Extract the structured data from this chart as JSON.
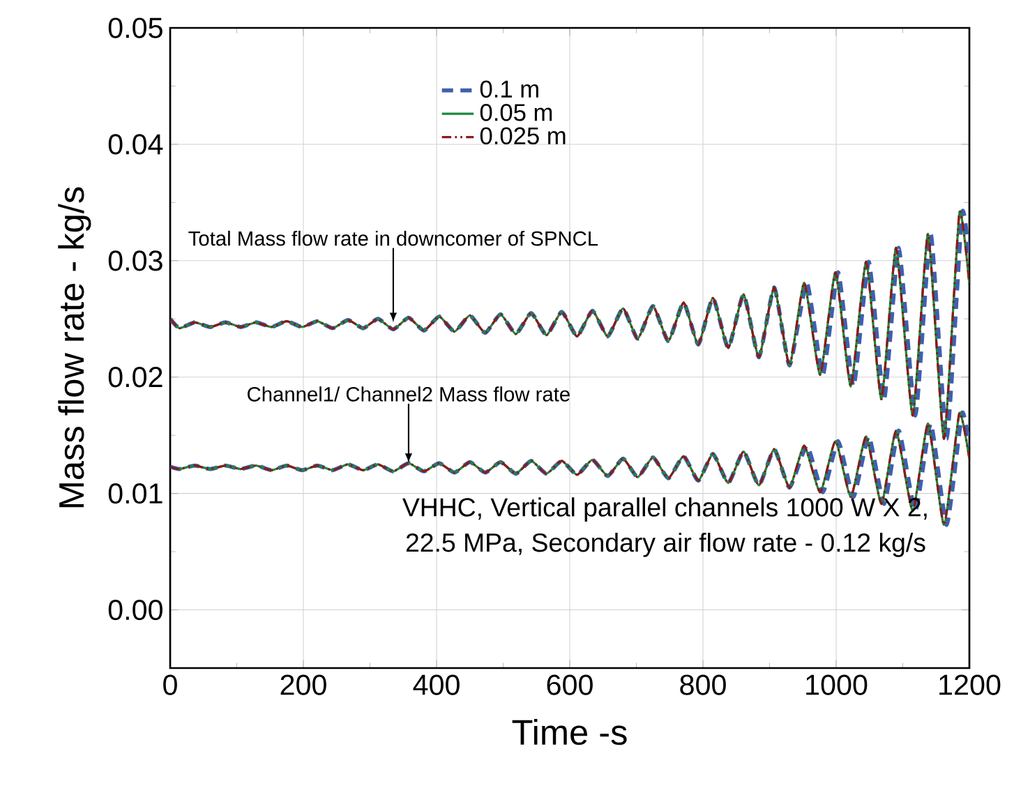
{
  "chart_data": {
    "type": "line",
    "xlabel": "Time -s",
    "ylabel": "Mass flow rate - kg/s",
    "xlim": [
      0,
      1200
    ],
    "ylim": [
      -0.005,
      0.05
    ],
    "xticks": [
      0,
      200,
      400,
      600,
      800,
      1000,
      1200
    ],
    "yticks": [
      {
        "value": 0,
        "label": "0.00"
      },
      {
        "value": 0.01,
        "label": "0.01"
      },
      {
        "value": 0.02,
        "label": "0.02"
      },
      {
        "value": 0.03,
        "label": "0.03"
      },
      {
        "value": 0.04,
        "label": "0.04"
      },
      {
        "value": 0.05,
        "label": "0.05"
      }
    ],
    "grid": true,
    "legend": "top",
    "marker": "none",
    "x": [
      0,
      14,
      37,
      60,
      83,
      106,
      129,
      152,
      175,
      198,
      221,
      244,
      267,
      290,
      312,
      335,
      358,
      381,
      404,
      427,
      450,
      473,
      496,
      519,
      542,
      565,
      588,
      611,
      634,
      657,
      680,
      702,
      725,
      748,
      771,
      793,
      815,
      838,
      861,
      884,
      907,
      930,
      952,
      976,
      999,
      1022,
      1045,
      1068,
      1090,
      1115,
      1138,
      1162,
      1185,
      1200
    ],
    "series": [
      {
        "name": "0.1 m",
        "color": "#3f5fb0",
        "line_style": "dashed",
        "x": [
          0,
          14,
          37,
          60,
          83,
          106,
          129,
          152,
          175,
          198,
          221,
          244,
          267,
          290,
          312,
          335,
          358,
          381,
          404,
          427,
          450,
          473,
          496,
          519,
          542,
          565,
          588,
          611,
          634,
          657,
          680,
          702,
          725,
          748,
          771,
          793,
          815,
          838,
          861,
          884,
          907,
          930,
          956,
          980,
          1003,
          1026,
          1049,
          1072,
          1094,
          1119,
          1142,
          1166,
          1189,
          1200
        ],
        "values": [
          0.025,
          0.0242,
          0.0247,
          0.0243,
          0.0247,
          0.0243,
          0.0247,
          0.0243,
          0.0248,
          0.0243,
          0.0248,
          0.0242,
          0.0249,
          0.0242,
          0.025,
          0.0241,
          0.0251,
          0.024,
          0.0252,
          0.0239,
          0.0253,
          0.0238,
          0.0254,
          0.0237,
          0.0255,
          0.0236,
          0.0256,
          0.0235,
          0.0257,
          0.0235,
          0.0259,
          0.0233,
          0.0261,
          0.0231,
          0.0264,
          0.0228,
          0.0268,
          0.0225,
          0.0271,
          0.0217,
          0.0277,
          0.021,
          0.0281,
          0.0202,
          0.029,
          0.0192,
          0.0299,
          0.0181,
          0.0311,
          0.0167,
          0.0323,
          0.0147,
          0.0341,
          0.03
        ]
      },
      {
        "name": "0.05 m",
        "color": "#1a8a3a",
        "line_style": "solid",
        "values": [
          0.025,
          0.0242,
          0.0247,
          0.0243,
          0.0247,
          0.0243,
          0.0247,
          0.0243,
          0.0248,
          0.0243,
          0.0248,
          0.0242,
          0.0249,
          0.0242,
          0.025,
          0.0241,
          0.0251,
          0.024,
          0.0252,
          0.0239,
          0.0253,
          0.0238,
          0.0254,
          0.0237,
          0.0255,
          0.0236,
          0.0256,
          0.0235,
          0.0257,
          0.0235,
          0.0259,
          0.0233,
          0.0261,
          0.0231,
          0.0264,
          0.0228,
          0.0268,
          0.0225,
          0.0271,
          0.0217,
          0.0277,
          0.021,
          0.0281,
          0.0202,
          0.029,
          0.0192,
          0.0299,
          0.0181,
          0.0311,
          0.0167,
          0.0323,
          0.0147,
          0.0341,
          0.028
        ]
      },
      {
        "name": "0.025 m",
        "color": "#8b1a1a",
        "line_style": "dashdotdotted",
        "values": [
          0.025,
          0.0242,
          0.0247,
          0.0243,
          0.0247,
          0.0243,
          0.0247,
          0.0243,
          0.0248,
          0.0243,
          0.0248,
          0.0242,
          0.0249,
          0.0242,
          0.025,
          0.0241,
          0.0251,
          0.024,
          0.0252,
          0.0239,
          0.0253,
          0.0238,
          0.0254,
          0.0237,
          0.0255,
          0.0236,
          0.0256,
          0.0235,
          0.0257,
          0.0235,
          0.0259,
          0.0233,
          0.0261,
          0.0231,
          0.0264,
          0.0228,
          0.0268,
          0.0225,
          0.0271,
          0.0217,
          0.0277,
          0.021,
          0.0281,
          0.0202,
          0.029,
          0.0192,
          0.0299,
          0.0181,
          0.0311,
          0.0167,
          0.0323,
          0.0147,
          0.0341,
          0.028
        ]
      },
      {
        "color": "#3f5fb0",
        "line_style": "dashed",
        "x": [
          0,
          14,
          37,
          60,
          83,
          106,
          129,
          152,
          175,
          198,
          221,
          244,
          267,
          290,
          312,
          335,
          358,
          381,
          404,
          427,
          450,
          473,
          496,
          519,
          542,
          565,
          588,
          611,
          634,
          657,
          680,
          702,
          725,
          748,
          771,
          793,
          815,
          838,
          861,
          884,
          907,
          930,
          956,
          980,
          1003,
          1026,
          1049,
          1072,
          1094,
          1119,
          1142,
          1166,
          1189,
          1200
        ],
        "values": [
          0.0123,
          0.0121,
          0.0124,
          0.0121,
          0.0124,
          0.0121,
          0.0124,
          0.012,
          0.0124,
          0.012,
          0.0124,
          0.012,
          0.0125,
          0.012,
          0.0125,
          0.0119,
          0.0126,
          0.0119,
          0.0126,
          0.0118,
          0.0127,
          0.0118,
          0.0127,
          0.0117,
          0.0128,
          0.0117,
          0.0128,
          0.0116,
          0.0129,
          0.0115,
          0.013,
          0.0114,
          0.0131,
          0.0113,
          0.0132,
          0.0111,
          0.0134,
          0.0109,
          0.0136,
          0.0107,
          0.0138,
          0.0105,
          0.0141,
          0.0101,
          0.0145,
          0.0097,
          0.0149,
          0.0091,
          0.0154,
          0.0085,
          0.016,
          0.0073,
          0.0169,
          0.014
        ]
      },
      {
        "color": "#1a8a3a",
        "line_style": "solid",
        "values": [
          0.0123,
          0.0121,
          0.0124,
          0.0121,
          0.0124,
          0.0121,
          0.0124,
          0.012,
          0.0124,
          0.012,
          0.0124,
          0.012,
          0.0125,
          0.012,
          0.0125,
          0.0119,
          0.0126,
          0.0119,
          0.0126,
          0.0118,
          0.0127,
          0.0118,
          0.0127,
          0.0117,
          0.0128,
          0.0117,
          0.0128,
          0.0116,
          0.0129,
          0.0115,
          0.013,
          0.0114,
          0.0131,
          0.0113,
          0.0132,
          0.0111,
          0.0134,
          0.0109,
          0.0136,
          0.0107,
          0.0138,
          0.0105,
          0.0141,
          0.0101,
          0.0145,
          0.0097,
          0.0149,
          0.0091,
          0.0154,
          0.0085,
          0.016,
          0.0073,
          0.0169,
          0.013
        ]
      },
      {
        "color": "#8b1a1a",
        "line_style": "dashdotdotted",
        "values": [
          0.0123,
          0.0121,
          0.0124,
          0.0121,
          0.0124,
          0.0121,
          0.0124,
          0.012,
          0.0124,
          0.012,
          0.0124,
          0.012,
          0.0125,
          0.012,
          0.0125,
          0.0119,
          0.0126,
          0.0119,
          0.0126,
          0.0118,
          0.0127,
          0.0118,
          0.0127,
          0.0117,
          0.0128,
          0.0117,
          0.0128,
          0.0116,
          0.0129,
          0.0115,
          0.013,
          0.0114,
          0.0131,
          0.0113,
          0.0132,
          0.0111,
          0.0134,
          0.0109,
          0.0136,
          0.0107,
          0.0138,
          0.0105,
          0.0141,
          0.0101,
          0.0145,
          0.0097,
          0.0149,
          0.0091,
          0.0154,
          0.0085,
          0.016,
          0.0073,
          0.0169,
          0.013
        ]
      }
    ],
    "annotations": [
      {
        "text": "Total Mass flow rate in downcomer of SPNCL",
        "x": 335,
        "y": 0.0247
      },
      {
        "text": "Channel1/ Channel2 Mass flow rate",
        "x": 358,
        "y": 0.0126
      },
      "VHHC, Vertical parallel channels 1000 W X 2,",
      "22.5 MPa, Secondary air flow rate - 0.12 kg/s"
    ]
  }
}
